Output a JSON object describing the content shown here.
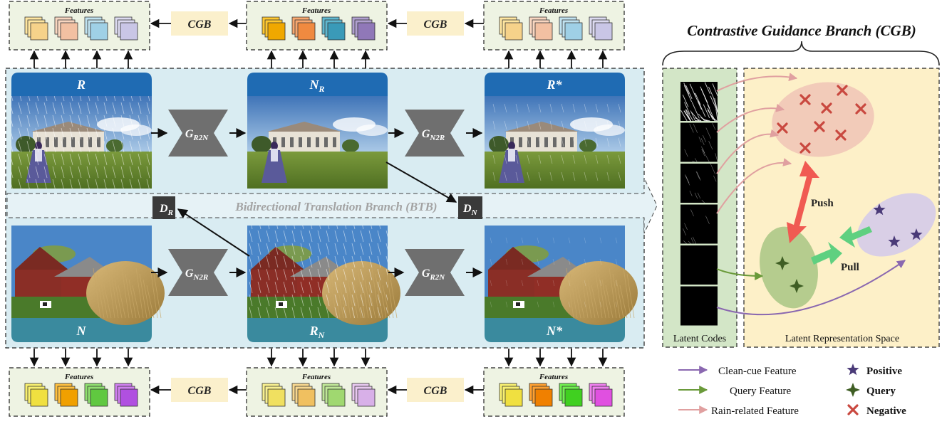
{
  "feature_label": "Features",
  "cgb_label": "CGB",
  "btb_label": "Bidirectional Translation Branch (BTB)",
  "image_headers": {
    "r": "R",
    "nr_base": "N",
    "nr_sub": "R",
    "rstar": "R*",
    "n": "N",
    "rn_base": "R",
    "rn_sub": "N",
    "nstar": "N*"
  },
  "generators": {
    "g_r2n_base": "G",
    "g_r2n_sub": "R2N",
    "g_n2r_base": "G",
    "g_n2r_sub": "N2R"
  },
  "discriminators": {
    "dr_base": "D",
    "dr_sub": "R",
    "dn_base": "D",
    "dn_sub": "N"
  },
  "cgb_panel": {
    "title": "Contrastive Guidance Branch (CGB)",
    "latent_codes_label": "Latent Codes",
    "latent_space_label": "Latent Representation Space",
    "push_label": "Push",
    "pull_label": "Pull"
  },
  "legend": {
    "clean_cue": "Clean-cue Feature",
    "query_feature": "Query Feature",
    "rain_related": "Rain-related Feature",
    "positive": "Positive",
    "query": "Query",
    "negative": "Negative"
  },
  "colors": {
    "btb_bg": "#d9ecf2",
    "feature_bg": "#eef3e3",
    "cgb_box": "#fbf0cc",
    "header_top": "#1f6bb3",
    "header_bottom": "#3a8a9e",
    "generator": "#6f6f6f",
    "discriminator": "#3a3a3a",
    "latent_bg": "#d3e6c7",
    "latent_space_bg": "#fdf0c8",
    "negative": "#c9483f",
    "positive": "#4a3a78",
    "query": "#3f5e24",
    "clean_arrow": "#8a68b0",
    "query_arrow": "#6a9a3a",
    "rain_arrow": "#e0a0a0",
    "push": "#f05a52",
    "pull": "#5fd080"
  }
}
